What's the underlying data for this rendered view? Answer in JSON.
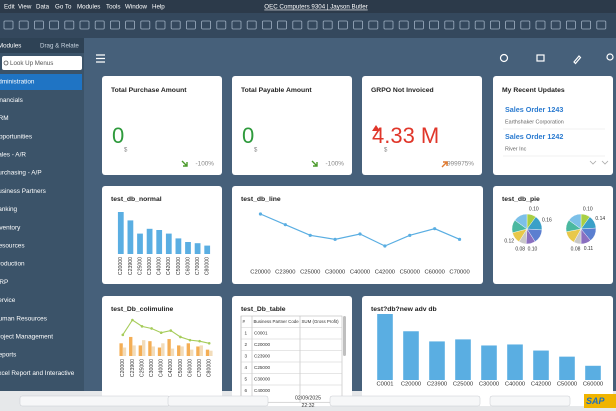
{
  "menubar": {
    "items": [
      "Edit",
      "View",
      "Data",
      "Go To",
      "Modules",
      "Tools",
      "Window",
      "Help"
    ],
    "title": "OEC Computers 9304 | Jayson Butler"
  },
  "sidebar": {
    "tabs": [
      "Modules",
      "Drag & Relate"
    ],
    "search_placeholder": "Look Up Menus",
    "items": [
      "Administration",
      "Financials",
      "CRM",
      "Opportunities",
      "Sales - A/R",
      "Purchasing - A/P",
      "Business Partners",
      "Banking",
      "Inventory",
      "Resources",
      "Production",
      "MRP",
      "Service",
      "Human Resources",
      "Project Management",
      "Reports",
      "Excel Report and Interactive"
    ],
    "selected": 0
  },
  "kpis": [
    {
      "title": "Total Purchase Amount",
      "value": "0",
      "unit": "$",
      "change": "-100%",
      "trend": "down",
      "color": "#2e9a3c"
    },
    {
      "title": "Total Payable Amount",
      "value": "0",
      "unit": "$",
      "change": "-100%",
      "trend": "down",
      "color": "#2e9a3c"
    },
    {
      "title": "GRPO Not Invoiced",
      "value": "4.33 M",
      "unit": "$",
      "change": "999975%",
      "trend": "up",
      "color": "#e0362a"
    }
  ],
  "recent": {
    "title": "My Recent Updates",
    "items": [
      {
        "title": "Sales Order 1243",
        "subtitle": "Earthshaker Corporation"
      },
      {
        "title": "Sales Order 1242",
        "subtitle": "River Inc"
      }
    ]
  },
  "chart_data": [
    {
      "type": "bar",
      "title": "test_db_normal",
      "color": "#5aaee2",
      "categories": [
        "C20000",
        "C23900",
        "C25000",
        "C30000",
        "C40000",
        "C42000",
        "C50000",
        "C60000",
        "C70000",
        "C80000"
      ],
      "values": [
        35,
        28,
        17,
        21,
        20,
        17,
        13,
        10,
        9,
        7
      ]
    },
    {
      "type": "line",
      "title": "test_db_line",
      "color": "#5aaee2",
      "categories": [
        "C20000",
        "C23900",
        "C25000",
        "C30000",
        "C40000",
        "C42000",
        "C50000",
        "C60000",
        "C70000"
      ],
      "values": [
        47,
        39,
        31,
        28,
        32,
        23,
        31,
        36,
        28
      ]
    },
    {
      "type": "pie",
      "title": "test_db_pie",
      "colors": [
        "#a8cf45",
        "#3aa0c8",
        "#5b7fd0",
        "#8a6fc0",
        "#c8c8c8",
        "#e8c84a",
        "#4ab8a0",
        "#7cc0e8"
      ],
      "pies": [
        {
          "values": [
            0.1,
            0.16,
            0.15,
            0.1,
            0.08,
            0.12,
            0.14,
            0.15
          ],
          "value_labels": [
            "0.10",
            "0.16",
            null,
            "0.10",
            "0.08",
            "0.12",
            null,
            null
          ]
        },
        {
          "values": [
            0.1,
            0.14,
            0.15,
            0.11,
            0.08,
            0.14,
            0.13,
            0.15
          ],
          "value_labels": [
            "0.10",
            "0.14",
            null,
            "0.11",
            "0.08",
            null,
            null,
            null
          ]
        }
      ]
    },
    {
      "type": "combo",
      "title": "test_Db_colimuline",
      "categories": [
        "C20000",
        "C23900",
        "C25000",
        "C30000",
        "C40000",
        "C42000",
        "C50000",
        "C60000",
        "C70000",
        "C80000"
      ],
      "series": [
        {
          "type": "bar",
          "color": "#f4ae55",
          "values": [
            12,
            18,
            10,
            14,
            8,
            16,
            10,
            12,
            9,
            6
          ]
        },
        {
          "type": "bar",
          "color": "#f2dcba",
          "values": [
            8,
            10,
            15,
            9,
            12,
            7,
            9,
            6,
            10,
            5
          ]
        },
        {
          "type": "line",
          "color": "#a6cc5a",
          "values": [
            20,
            34,
            28,
            26,
            22,
            24,
            18,
            15,
            14,
            12
          ]
        }
      ]
    },
    {
      "type": "bar",
      "title": "test?db?new adv db",
      "color": "#5aaee2",
      "categories": [
        "C0001",
        "C20000",
        "C23900",
        "C25000",
        "C30000",
        "C40000",
        "C42000",
        "C50000",
        "C60000"
      ],
      "values": [
        65,
        48,
        38,
        40,
        34,
        35,
        29,
        23,
        14
      ]
    }
  ],
  "table": {
    "title": "test_Db_table",
    "columns": [
      "#",
      "Business Partner Code",
      "SUM (Gross Profit)"
    ],
    "rows": [
      [
        "1",
        "C0001"
      ],
      [
        "2",
        "C20000"
      ],
      [
        "3",
        "C23900"
      ],
      [
        "4",
        "C25000"
      ],
      [
        "5",
        "C30000"
      ],
      [
        "6",
        "C40000"
      ]
    ]
  },
  "status": {
    "date": "02/09/2025",
    "time": "22:32",
    "logo": "SAP"
  }
}
